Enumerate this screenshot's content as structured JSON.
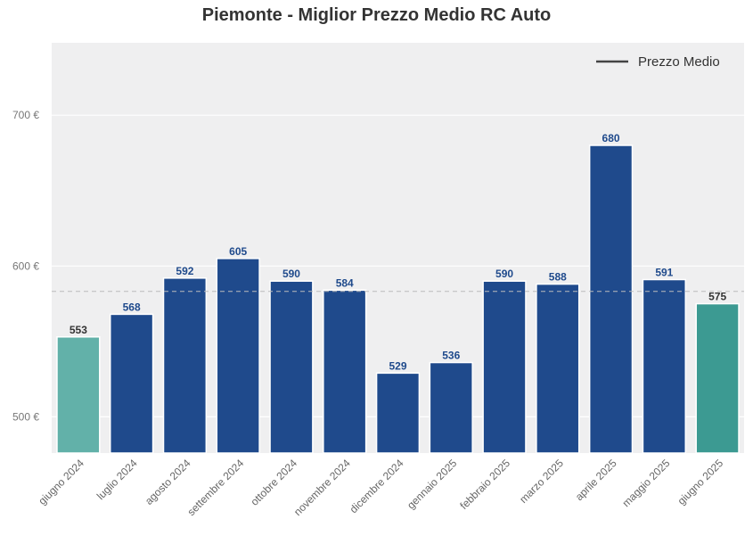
{
  "chart_data": {
    "type": "bar",
    "title": "Piemonte - Miglior Prezzo Medio RC Auto",
    "xlabel": "",
    "ylabel": "",
    "categories": [
      "giugno 2024",
      "luglio 2024",
      "agosto 2024",
      "settembre 2024",
      "ottobre 2024",
      "novembre 2024",
      "dicembre 2024",
      "gennaio 2025",
      "febbraio 2025",
      "marzo 2025",
      "aprile 2025",
      "maggio 2025",
      "giugno 2025"
    ],
    "values": [
      553,
      568,
      592,
      605,
      590,
      584,
      529,
      536,
      590,
      588,
      680,
      591,
      575
    ],
    "value_labels": [
      "553",
      "568",
      "592",
      "605",
      "590",
      "584",
      "529",
      "536",
      "590",
      "588",
      "680",
      "591",
      "575"
    ],
    "ylim": [
      476,
      748
    ],
    "yticks": [
      500,
      600,
      700
    ],
    "ytick_labels": [
      "500 €",
      "600 €",
      "700 €"
    ],
    "reference_line": {
      "value": 583.2,
      "style": "dashed"
    },
    "legend": {
      "placement": "top-right",
      "entries": [
        "Prezzo Medio"
      ]
    },
    "grid": true,
    "colors": {
      "bar_default": "#1f4a8c",
      "bar_first": "#62b1a9",
      "bar_last": "#3c9a92",
      "label_default": "#1f4a8c",
      "label_highlight": "#333333",
      "plot_background": "#efeff0",
      "legend_line": "#444444",
      "reference_line": "#bbbbbb"
    }
  }
}
